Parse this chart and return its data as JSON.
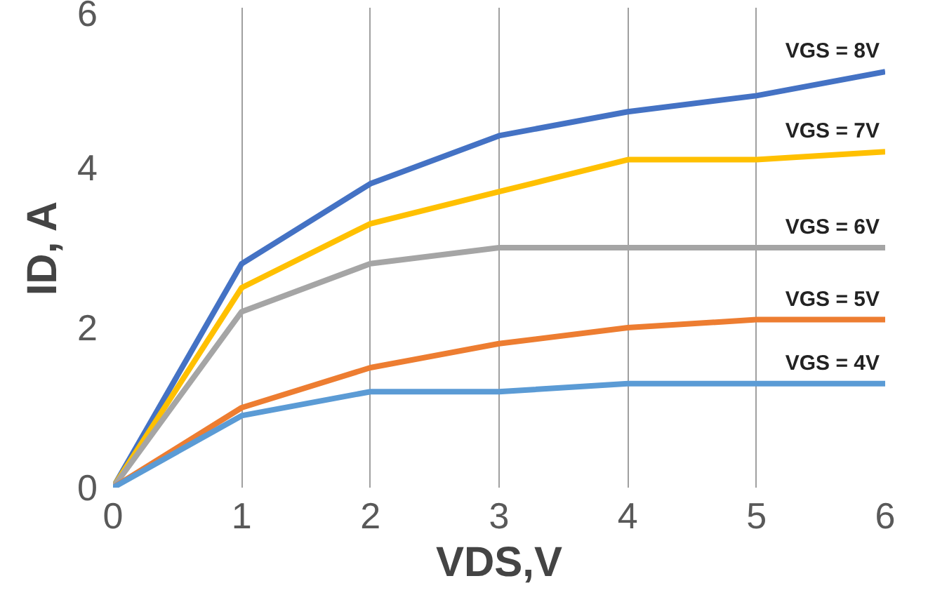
{
  "chart_data": {
    "type": "line",
    "xlabel": "VDS,V",
    "ylabel": "ID, A",
    "x": [
      0,
      1,
      2,
      3,
      4,
      5,
      6
    ],
    "series": [
      {
        "name": "VGS = 8V",
        "color": "#4472c4",
        "values": [
          0,
          2.8,
          3.8,
          4.4,
          4.7,
          4.9,
          5.2
        ]
      },
      {
        "name": "VGS = 7V",
        "color": "#ffc000",
        "values": [
          0,
          2.5,
          3.3,
          3.7,
          4.1,
          4.1,
          4.2
        ]
      },
      {
        "name": "VGS = 6V",
        "color": "#a5a5a5",
        "values": [
          0,
          2.2,
          2.8,
          3.0,
          3.0,
          3.0,
          3.0
        ]
      },
      {
        "name": "VGS = 5V",
        "color": "#ed7d31",
        "values": [
          0,
          1.0,
          1.5,
          1.8,
          2.0,
          2.1,
          2.1
        ]
      },
      {
        "name": "VGS = 4V",
        "color": "#5b9bd5",
        "values": [
          0,
          0.9,
          1.2,
          1.2,
          1.3,
          1.3,
          1.3
        ]
      }
    ],
    "xlim": [
      0,
      6
    ],
    "ylim": [
      0,
      6
    ],
    "xticks": [
      0,
      1,
      2,
      3,
      4,
      5,
      6
    ],
    "yticks": [
      0,
      2,
      4,
      6
    ],
    "grid": "x",
    "marker": "none",
    "line_style": "solid"
  }
}
